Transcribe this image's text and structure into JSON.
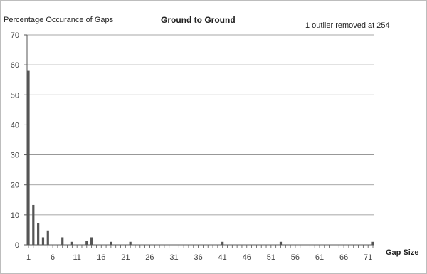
{
  "chart_data": {
    "type": "bar",
    "title": "Ground to Ground",
    "ylabel": "Percentage Occurance of Gaps",
    "xlabel": "Gap Size",
    "annotation": "1 outlier removed at 254",
    "ylim": [
      0,
      70
    ],
    "yticks": [
      0,
      10,
      20,
      30,
      40,
      50,
      60,
      70
    ],
    "xlim": [
      1,
      72
    ],
    "xticks": [
      1,
      6,
      11,
      16,
      21,
      26,
      31,
      36,
      41,
      46,
      51,
      56,
      61,
      66,
      71
    ],
    "grid": "horizontal",
    "bar_color": "#555555",
    "x": [
      1,
      2,
      3,
      4,
      5,
      8,
      10,
      13,
      14,
      18,
      22,
      41,
      53,
      72
    ],
    "values": [
      58,
      13.3,
      7.2,
      2.5,
      4.8,
      2.5,
      1.0,
      1.3,
      2.5,
      1.0,
      1.0,
      1.0,
      1.0,
      1.0
    ]
  }
}
